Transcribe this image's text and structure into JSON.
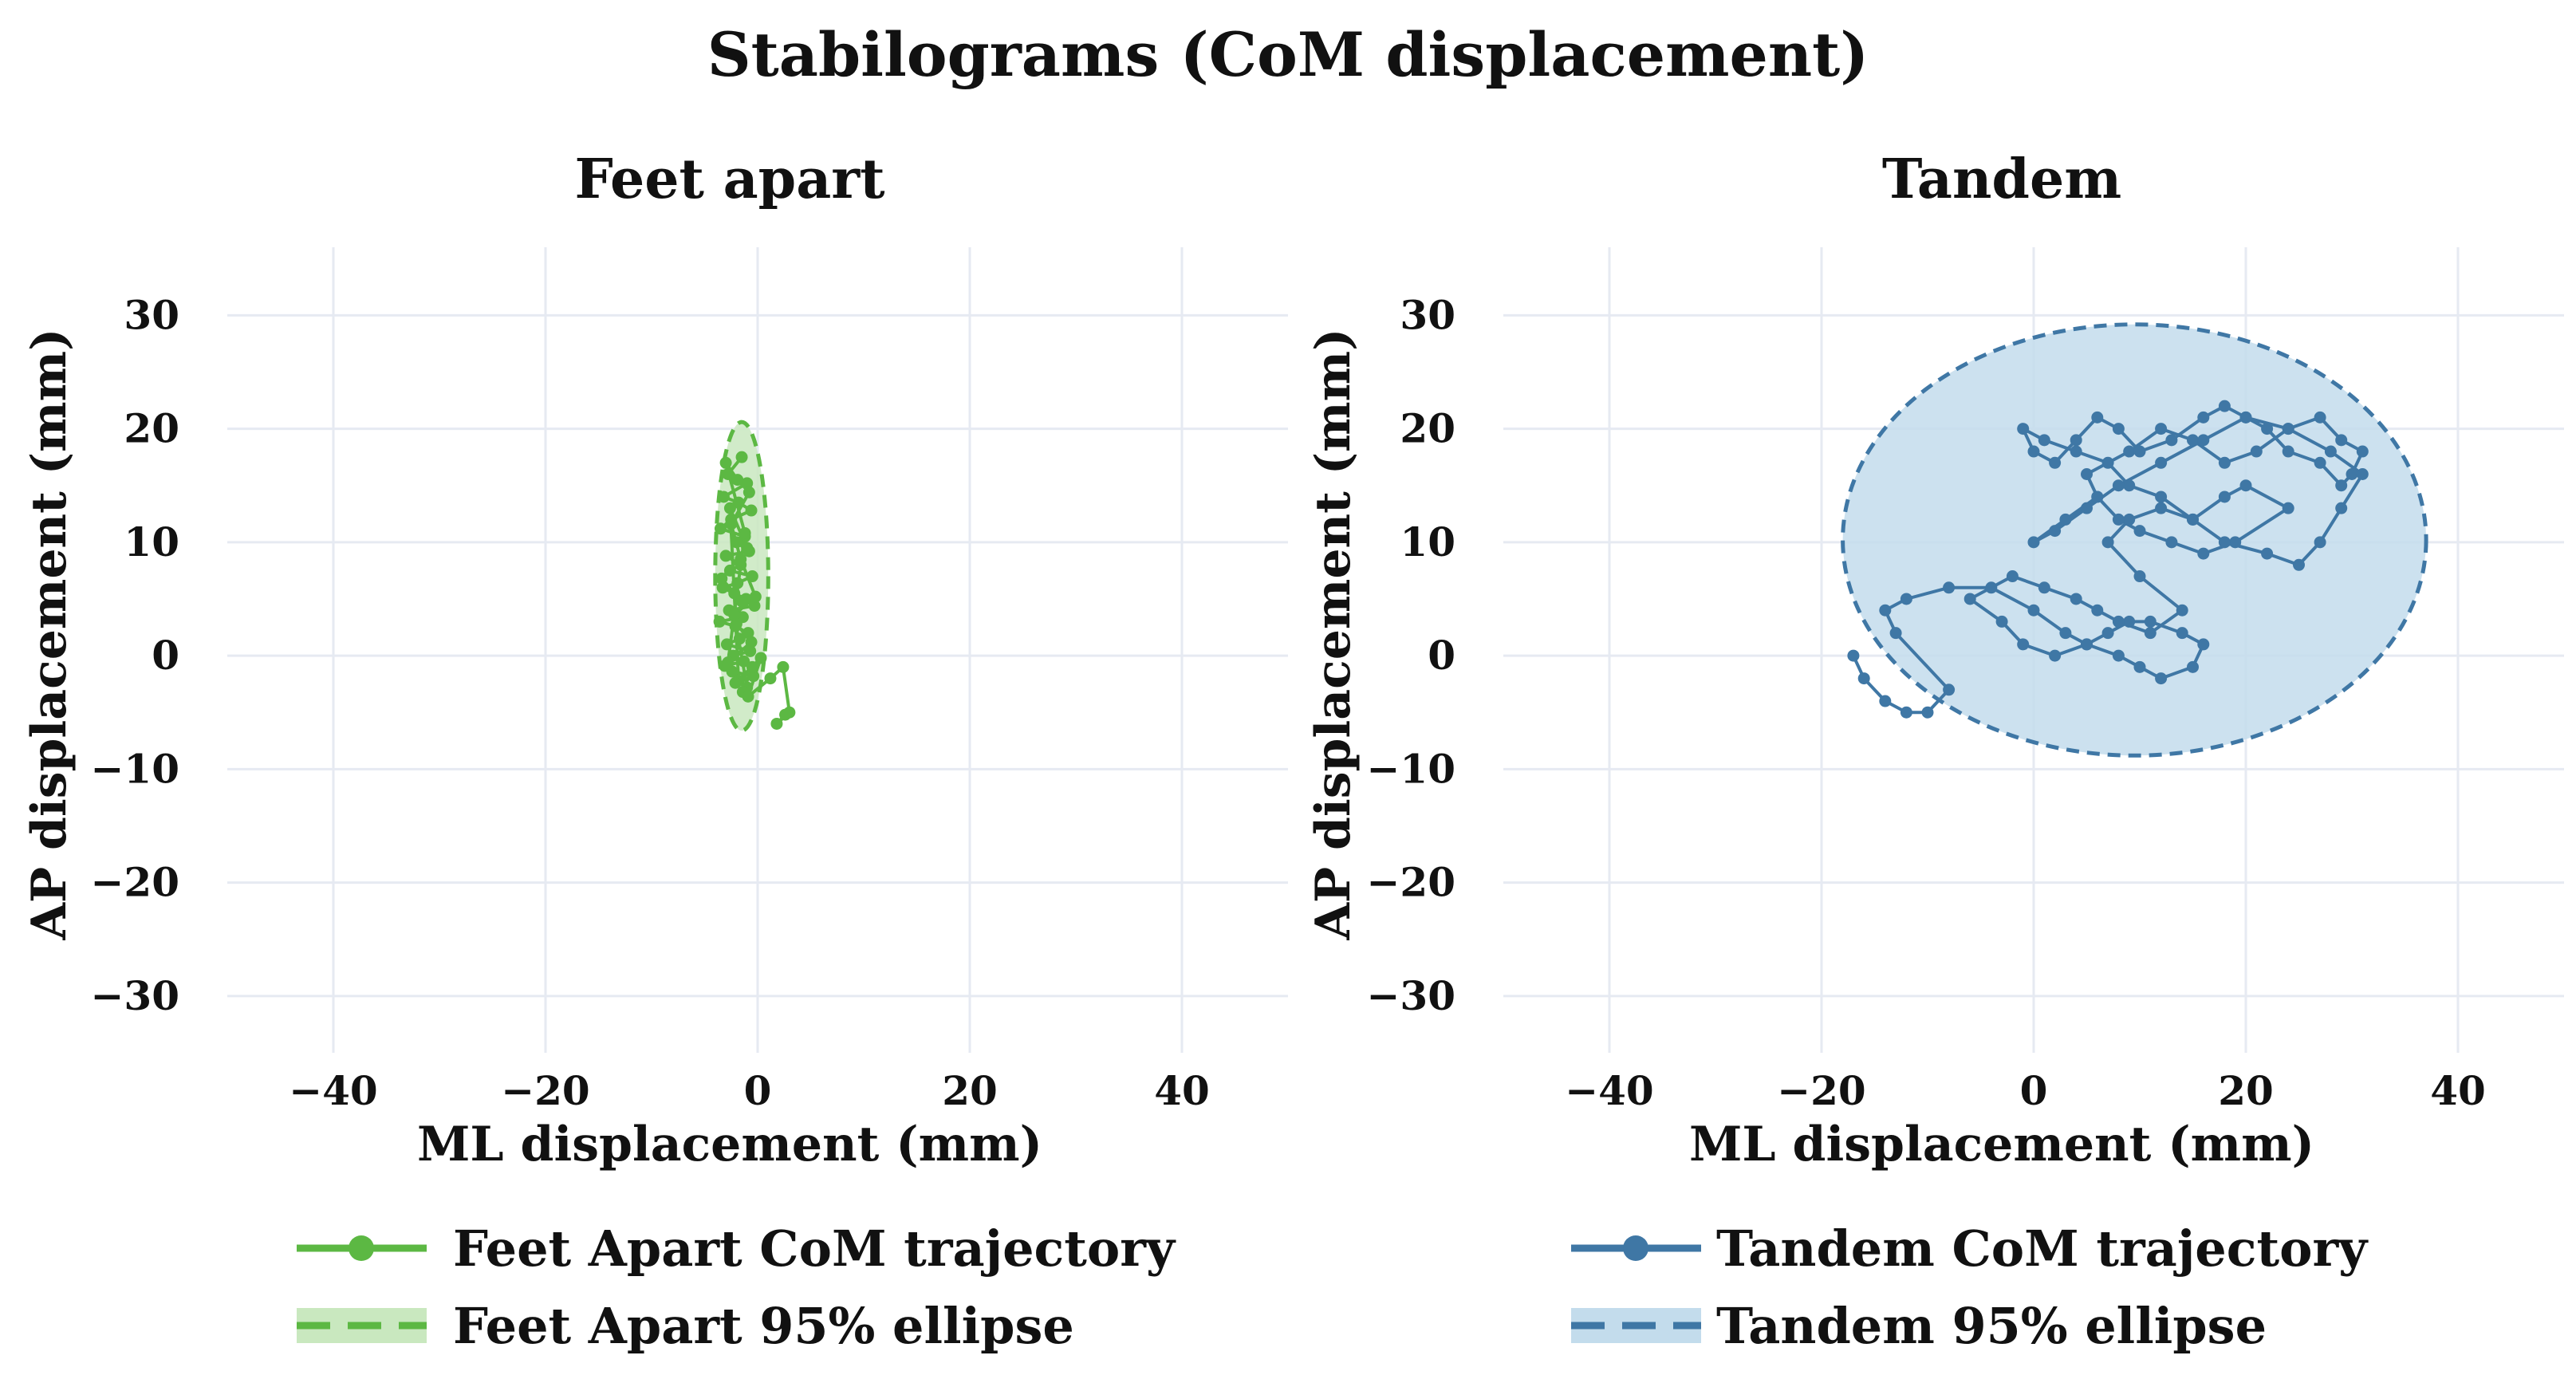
{
  "figure_title": "Stabilograms (CoM displacement)",
  "chart_data": [
    {
      "type": "scatter",
      "title": "Feet apart",
      "xlabel": "ML displacement (mm)",
      "ylabel": "AP displacement (mm)",
      "xlim": [
        -50,
        50
      ],
      "ylim": [
        -35,
        36
      ],
      "xticks": [
        -40,
        -20,
        0,
        20,
        40
      ],
      "yticks": [
        -30,
        -20,
        -10,
        0,
        10,
        20,
        30
      ],
      "xtick_labels": [
        "−40",
        "−20",
        "0",
        "20",
        "40"
      ],
      "ytick_labels": [
        "−30",
        "−20",
        "−10",
        "0",
        "10",
        "20",
        "30"
      ],
      "grid": true,
      "legend_placement": "bottom",
      "color": "#5cb843",
      "fill_color": "#c9e8bf",
      "series": [
        {
          "name": "Feet Apart CoM trajectory",
          "kind": "line-markers",
          "x": [
            -1.5,
            -2.8,
            -1.0,
            -3.2,
            -1.8,
            -0.6,
            -2.5,
            -3.5,
            -1.2,
            -2.0,
            -0.8,
            -3.0,
            -1.6,
            -2.6,
            -0.5,
            -1.9,
            -3.3,
            -2.2,
            -1.1,
            -0.3,
            -2.7,
            -1.4,
            -3.6,
            -2.1,
            -0.9,
            -1.7,
            -2.9,
            -0.7,
            -2.3,
            -1.3,
            -3.1,
            -2.4,
            -0.4,
            -1.8,
            -2.6,
            -1.0,
            -3.4,
            -1.5,
            -2.0,
            -0.6,
            -2.8,
            -1.2,
            -3.0,
            -1.9,
            -0.8,
            -2.5,
            -1.6,
            -0.2,
            -2.2,
            -1.0,
            -1.4,
            -0.5,
            -2.1,
            0.3,
            -0.9,
            1.2,
            2.4,
            3.0,
            1.8,
            2.6
          ],
          "y": [
            17.5,
            16.0,
            15.2,
            14.0,
            13.5,
            12.8,
            12.0,
            11.2,
            10.5,
            10.0,
            9.2,
            8.8,
            8.0,
            7.5,
            7.0,
            6.4,
            6.0,
            5.5,
            5.0,
            4.4,
            4.0,
            3.4,
            3.0,
            2.6,
            2.0,
            1.5,
            1.0,
            0.4,
            0.0,
            -0.5,
            -0.9,
            -1.4,
            -1.8,
            -2.2,
            13.0,
            9.5,
            6.8,
            4.8,
            2.8,
            1.2,
            -0.6,
            10.8,
            17.0,
            15.5,
            14.4,
            11.6,
            8.5,
            5.2,
            3.6,
            -2.8,
            -3.2,
            -1.0,
            -2.4,
            -0.2,
            -3.6,
            -2.0,
            -1.0,
            -5.0,
            -6.0,
            -5.2
          ]
        },
        {
          "name": "Feet Apart 95% ellipse",
          "kind": "ellipse",
          "center": [
            -1.5,
            7.0
          ],
          "semi_axes": [
            2.5,
            13.6
          ]
        }
      ]
    },
    {
      "type": "scatter",
      "title": "Tandem",
      "xlabel": "ML displacement (mm)",
      "ylabel": "AP displacement (mm)",
      "xlim": [
        -50,
        50
      ],
      "ylim": [
        -35,
        36
      ],
      "xticks": [
        -40,
        -20,
        0,
        20,
        40
      ],
      "yticks": [
        -30,
        -20,
        -10,
        0,
        10,
        20,
        30
      ],
      "xtick_labels": [
        "−40",
        "−20",
        "0",
        "20",
        "40"
      ],
      "ytick_labels": [
        "−30",
        "−20",
        "−10",
        "0",
        "10",
        "20",
        "30"
      ],
      "grid": true,
      "legend_placement": "bottom",
      "color": "#3f77a5",
      "fill_color": "#c3dcec",
      "series": [
        {
          "name": "Tandem CoM trajectory",
          "kind": "line-markers",
          "x": [
            -17,
            -16,
            -14,
            -12,
            -10,
            -8,
            -13,
            -14,
            -12,
            -8,
            -4,
            0,
            3,
            5,
            8,
            10,
            12,
            15,
            16,
            14,
            11,
            9,
            7,
            5,
            2,
            -1,
            -3,
            -6,
            -2,
            1,
            4,
            6,
            8,
            11,
            14,
            10,
            7,
            9,
            12,
            15,
            18,
            20,
            24,
            19,
            16,
            13,
            10,
            8,
            6,
            5,
            9,
            12,
            15,
            18,
            21,
            24,
            27,
            29,
            31,
            30,
            29,
            27,
            24,
            22,
            20,
            18,
            16,
            13,
            10,
            8,
            6,
            4,
            2,
            0,
            -1,
            1,
            4,
            7,
            9,
            12,
            15,
            18,
            22,
            25,
            27,
            29,
            31,
            28,
            24,
            20,
            16,
            12,
            8,
            5,
            2,
            0,
            3,
            6
          ],
          "y": [
            0,
            -2,
            -4,
            -5,
            -5,
            -3,
            2,
            4,
            5,
            6,
            6,
            4,
            2,
            1,
            0,
            -1,
            -2,
            -1,
            1,
            2,
            3,
            3,
            2,
            1,
            0,
            1,
            3,
            5,
            7,
            6,
            5,
            4,
            3,
            2,
            4,
            7,
            10,
            12,
            13,
            12,
            14,
            15,
            13,
            10,
            9,
            10,
            11,
            12,
            14,
            16,
            18,
            20,
            19,
            17,
            18,
            20,
            21,
            19,
            18,
            16,
            15,
            17,
            18,
            20,
            21,
            22,
            21,
            19,
            18,
            20,
            21,
            19,
            17,
            18,
            20,
            19,
            18,
            17,
            15,
            14,
            12,
            10,
            9,
            8,
            10,
            13,
            16,
            18,
            20,
            21,
            19,
            17,
            15,
            13,
            11,
            10,
            12,
            14
          ]
        },
        {
          "name": "Tandem 95% ellipse",
          "kind": "ellipse",
          "center": [
            9.5,
            10.2
          ],
          "semi_axes": [
            27.5,
            19.0
          ]
        }
      ]
    }
  ]
}
